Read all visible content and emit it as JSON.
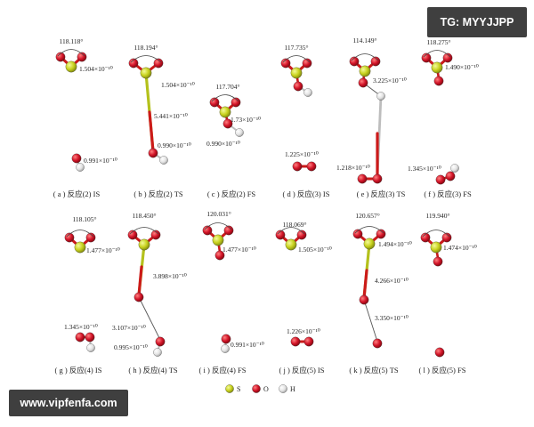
{
  "watermark_top": "TG: MYYJJPP",
  "watermark_bottom": "www.vipfenfa.com",
  "colors": {
    "S": "#c8d21e",
    "O": "#d21428",
    "H": "#e6e6e6",
    "bond_O": "#cc1a1a",
    "bond_S": "#b4c11c",
    "bond_H": "#bdbdbd",
    "line": "#555555"
  },
  "legend": [
    {
      "symbol": "S",
      "color": "#c8d21e"
    },
    {
      "symbol": "O",
      "color": "#d21428"
    },
    {
      "symbol": "H",
      "color": "#e6e6e6"
    }
  ],
  "panels": [
    {
      "label": "( a ) 反应(2) IS",
      "annotations": [
        "118.118°",
        "1.504×10⁻¹⁰",
        "0.991×10⁻¹⁰"
      ]
    },
    {
      "label": "( b ) 反应(2) TS",
      "annotations": [
        "118.194°",
        "1.504×10⁻¹⁰",
        "5.441×10⁻¹⁰",
        "0.990×10⁻¹⁰"
      ]
    },
    {
      "label": "( c ) 反应(2) FS",
      "annotations": [
        "117.704°",
        "1.73×10⁻¹⁰",
        "0.990×10⁻¹⁰"
      ]
    },
    {
      "label": "( d ) 反应(3) IS",
      "annotations": [
        "117.735°",
        "1.225×10⁻¹⁰"
      ]
    },
    {
      "label": "( e ) 反应(3) TS",
      "annotations": [
        "114.149°",
        "3.225×10⁻¹⁰",
        "1.218×10⁻¹⁰"
      ]
    },
    {
      "label": "( f ) 反应(3) FS",
      "annotations": [
        "118.275°",
        "1.490×10⁻¹⁰",
        "1.345×10⁻¹⁰"
      ]
    },
    {
      "label": "( g ) 反应(4) IS",
      "annotations": [
        "118.105°",
        "1.477×10⁻¹⁰",
        "1.345×10⁻¹⁰"
      ]
    },
    {
      "label": "( h ) 反应(4) TS",
      "annotations": [
        "118.450°",
        "3.898×10⁻¹⁰",
        "3.107×10⁻¹⁰",
        "0.995×10⁻¹⁰"
      ]
    },
    {
      "label": "( i ) 反应(4) FS",
      "annotations": [
        "120.031°",
        "1.477×10⁻¹⁰",
        "0.991×10⁻¹⁰"
      ]
    },
    {
      "label": "( j ) 反应(5) IS",
      "annotations": [
        "118.069°",
        "1.505×10⁻¹⁰",
        "1.226×10⁻¹⁰"
      ]
    },
    {
      "label": "( k ) 反应(5) TS",
      "annotations": [
        "120.657°",
        "1.494×10⁻¹⁰",
        "4.266×10⁻¹⁰",
        "3.350×10⁻¹⁰"
      ]
    },
    {
      "label": "( l ) 反应(5) FS",
      "annotations": [
        "119.940°",
        "1.474×10⁻¹⁰"
      ]
    }
  ]
}
